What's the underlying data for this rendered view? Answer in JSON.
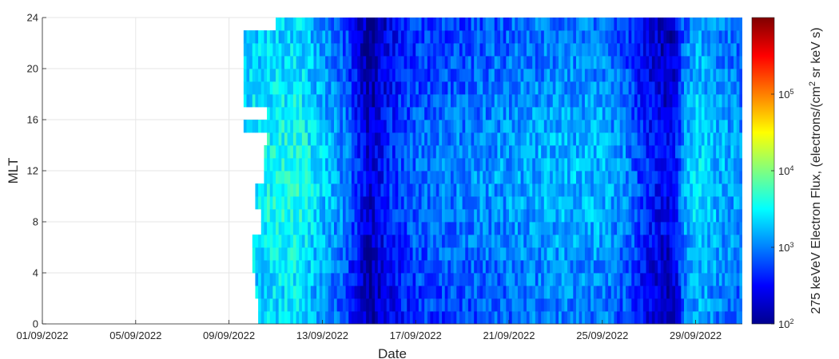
{
  "chart_data": {
    "type": "heatmap",
    "title": "",
    "xlabel": "Date",
    "ylabel": "MLT",
    "colorbar_label": {
      "prefix": "275 keVeV Electron Flux, (electrons/(cm",
      "sup": "2",
      "suffix": " sr keV s)"
    },
    "xlim": [
      "2022-09-01",
      "2022-10-01"
    ],
    "ylim": [
      0,
      24
    ],
    "x_ticks": [
      "01/09/2022",
      "05/09/2022",
      "09/09/2022",
      "13/09/2022",
      "17/09/2022",
      "21/09/2022",
      "25/09/2022",
      "29/09/2022"
    ],
    "y_ticks": [
      0,
      4,
      8,
      12,
      16,
      20,
      24
    ],
    "colorbar": {
      "scale": "log",
      "range": [
        100,
        1000000
      ],
      "colormap": "jet",
      "ticks": [
        {
          "value": 100,
          "base": "10",
          "exp": "2"
        },
        {
          "value": 1000,
          "base": "10",
          "exp": "3"
        },
        {
          "value": 10000,
          "base": "10",
          "exp": "4"
        },
        {
          "value": 100000,
          "base": "10",
          "exp": "5"
        }
      ]
    },
    "grid": true,
    "mlt_bin_hours": 1,
    "time_bin_hours": 3,
    "data_start_by_mlt_bin": [
      "2022-09-10T06:00",
      "2022-09-10T06:00",
      "2022-09-10T03:00",
      "2022-09-10T03:00",
      "2022-09-10T00:00",
      "2022-09-10T00:00",
      "2022-09-10T00:00",
      "2022-09-10T09:00",
      "2022-09-10T09:00",
      "2022-09-10T03:00",
      "2022-09-10T03:00",
      "2022-09-10T12:00",
      "2022-09-10T12:00",
      "2022-09-10T12:00",
      "2022-09-10T15:00",
      "2022-09-09T15:00",
      "2022-09-10T15:00",
      "2022-09-09T15:00",
      "2022-09-09T15:00",
      "2022-09-09T15:00",
      "2022-09-09T15:00",
      "2022-09-09T15:00",
      "2022-09-09T15:00",
      "2022-09-11T00:00"
    ],
    "data_end": "2022-10-01",
    "flux_profile": [
      {
        "date": "2022-09-10",
        "log10_flux": 3.4
      },
      {
        "date": "2022-09-12",
        "log10_flux": 3.5
      },
      {
        "date": "2022-09-13",
        "log10_flux": 3.2
      },
      {
        "date": "2022-09-14",
        "log10_flux": 2.9
      },
      {
        "date": "2022-09-15",
        "log10_flux": 2.2
      },
      {
        "date": "2022-09-16",
        "log10_flux": 2.6
      },
      {
        "date": "2022-09-17",
        "log10_flux": 2.8
      },
      {
        "date": "2022-09-19",
        "log10_flux": 2.9
      },
      {
        "date": "2022-09-21",
        "log10_flux": 3.0
      },
      {
        "date": "2022-09-23",
        "log10_flux": 3.1
      },
      {
        "date": "2022-09-25",
        "log10_flux": 3.1
      },
      {
        "date": "2022-09-26",
        "log10_flux": 2.9
      },
      {
        "date": "2022-09-27",
        "log10_flux": 2.5
      },
      {
        "date": "2022-09-28",
        "log10_flux": 2.3
      },
      {
        "date": "2022-09-28T12:00",
        "log10_flux": 3.0
      },
      {
        "date": "2022-09-29",
        "log10_flux": 3.3
      },
      {
        "date": "2022-09-30",
        "log10_flux": 3.1
      },
      {
        "date": "2022-10-01",
        "log10_flux": 3.0
      }
    ]
  }
}
